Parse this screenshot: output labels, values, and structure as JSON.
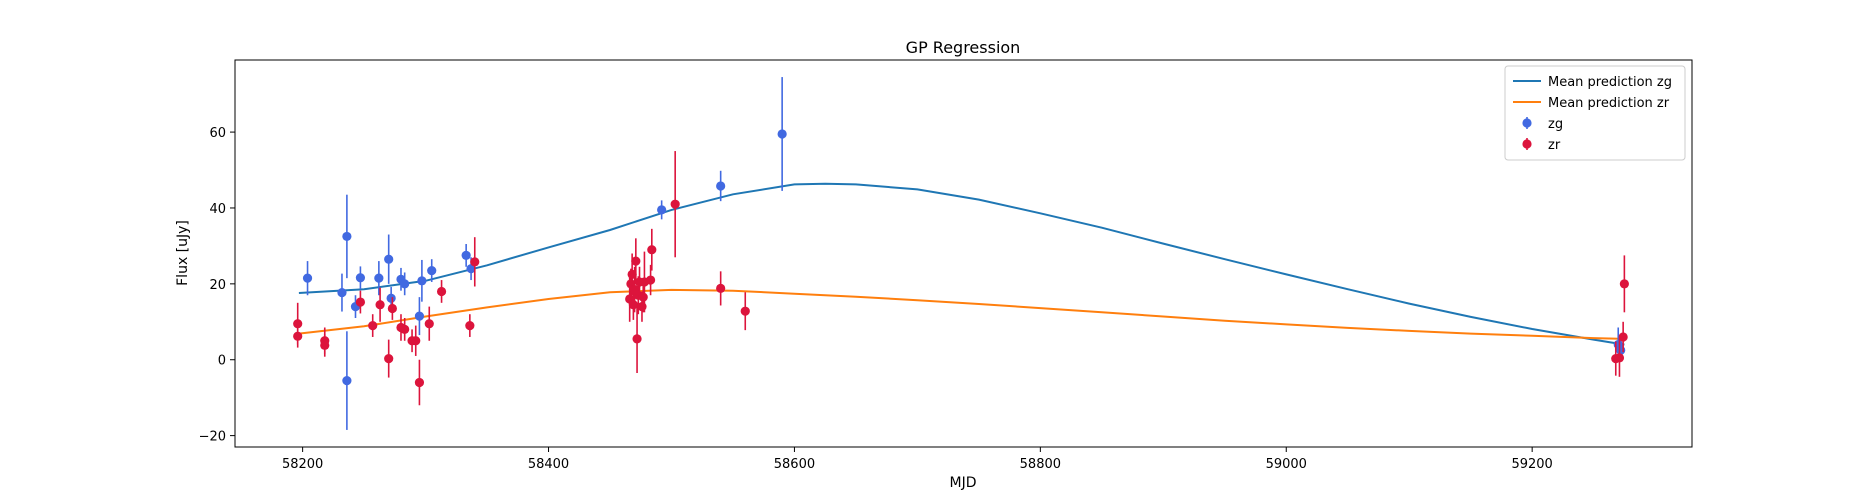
{
  "chart_data": {
    "type": "scatter",
    "title": "GP Regression",
    "xlabel": "MJD",
    "ylabel": "Flux [uJy]",
    "xlim": [
      58145,
      59330
    ],
    "ylim": [
      -23,
      79
    ],
    "xticks": [
      58200,
      58400,
      58600,
      58800,
      59000,
      59200
    ],
    "yticks": [
      -20,
      0,
      20,
      40,
      60
    ],
    "grid": false,
    "legend_position": "top-right",
    "lines": [
      {
        "name": "Mean prediction zg",
        "color": "#1f77b4",
        "x": [
          58197,
          58250,
          58300,
          58350,
          58400,
          58450,
          58500,
          58550,
          58600,
          58625,
          58650,
          58700,
          58750,
          58800,
          58850,
          58900,
          58950,
          59000,
          59050,
          59100,
          59150,
          59200,
          59250,
          59275
        ],
        "y": [
          17.6,
          18.6,
          20.8,
          24.9,
          29.6,
          34.2,
          39.5,
          43.6,
          46.2,
          46.4,
          46.2,
          44.9,
          42.2,
          38.6,
          34.8,
          30.6,
          26.5,
          22.5,
          18.6,
          14.8,
          11.3,
          8.1,
          5.3,
          4.0
        ]
      },
      {
        "name": "Mean prediction zr",
        "color": "#ff7f0e",
        "x": [
          58197,
          58250,
          58300,
          58350,
          58400,
          58450,
          58500,
          58550,
          58600,
          58650,
          58700,
          58750,
          58800,
          58850,
          58900,
          58950,
          59000,
          59050,
          59100,
          59150,
          59200,
          59250,
          59275
        ],
        "y": [
          6.9,
          8.8,
          11.4,
          13.8,
          16.0,
          17.8,
          18.4,
          18.2,
          17.4,
          16.6,
          15.7,
          14.7,
          13.6,
          12.5,
          11.4,
          10.3,
          9.3,
          8.4,
          7.6,
          6.9,
          6.3,
          5.7,
          5.5
        ]
      }
    ],
    "series": [
      {
        "name": "zg",
        "color": "#4169e1",
        "points": [
          {
            "x": 58204,
            "y": 21.5,
            "err": 4.5
          },
          {
            "x": 58232,
            "y": 17.7,
            "err": 5.0
          },
          {
            "x": 58236,
            "y": 32.5,
            "err": 11.0
          },
          {
            "x": 58236,
            "y": -5.5,
            "err": 13.0
          },
          {
            "x": 58243,
            "y": 14.0,
            "err": 3.0
          },
          {
            "x": 58247,
            "y": 21.6,
            "err": 3.0
          },
          {
            "x": 58262,
            "y": 21.5,
            "err": 4.5
          },
          {
            "x": 58270,
            "y": 26.5,
            "err": 6.5
          },
          {
            "x": 58272,
            "y": 16.2,
            "err": 3.0
          },
          {
            "x": 58280,
            "y": 21.2,
            "err": 3.0
          },
          {
            "x": 58283,
            "y": 20.0,
            "err": 3.0
          },
          {
            "x": 58295,
            "y": 11.5,
            "err": 5.0
          },
          {
            "x": 58297,
            "y": 20.8,
            "err": 5.5
          },
          {
            "x": 58305,
            "y": 23.5,
            "err": 3.0
          },
          {
            "x": 58333,
            "y": 27.5,
            "err": 3.0
          },
          {
            "x": 58337,
            "y": 24.0,
            "err": 3.0
          },
          {
            "x": 58492,
            "y": 39.5,
            "err": 2.5
          },
          {
            "x": 58540,
            "y": 45.8,
            "err": 4.0
          },
          {
            "x": 58590,
            "y": 59.5,
            "err": 15.0
          },
          {
            "x": 59270,
            "y": 4.0,
            "err": 4.5
          },
          {
            "x": 59272,
            "y": 2.5,
            "err": 3.0
          }
        ]
      },
      {
        "name": "zr",
        "color": "#dc143c",
        "points": [
          {
            "x": 58196,
            "y": 9.5,
            "err": 5.5
          },
          {
            "x": 58196,
            "y": 6.2,
            "err": 3.0
          },
          {
            "x": 58218,
            "y": 5.0,
            "err": 3.5
          },
          {
            "x": 58218,
            "y": 3.8,
            "err": 3.0
          },
          {
            "x": 58247,
            "y": 15.2,
            "err": 3.0
          },
          {
            "x": 58257,
            "y": 9.0,
            "err": 3.0
          },
          {
            "x": 58263,
            "y": 14.5,
            "err": 4.5
          },
          {
            "x": 58270,
            "y": 0.3,
            "err": 5.0
          },
          {
            "x": 58273,
            "y": 13.5,
            "err": 3.0
          },
          {
            "x": 58280,
            "y": 8.5,
            "err": 3.5
          },
          {
            "x": 58283,
            "y": 8.0,
            "err": 3.0
          },
          {
            "x": 58289,
            "y": 5.0,
            "err": 3.0
          },
          {
            "x": 58292,
            "y": 5.0,
            "err": 4.0
          },
          {
            "x": 58295,
            "y": -6.0,
            "err": 6.0
          },
          {
            "x": 58303,
            "y": 9.5,
            "err": 4.5
          },
          {
            "x": 58313,
            "y": 18.0,
            "err": 3.0
          },
          {
            "x": 58336,
            "y": 9.0,
            "err": 3.0
          },
          {
            "x": 58340,
            "y": 25.8,
            "err": 6.5
          },
          {
            "x": 58466,
            "y": 16.0,
            "err": 6.0
          },
          {
            "x": 58467,
            "y": 20.0,
            "err": 4.0
          },
          {
            "x": 58468,
            "y": 22.5,
            "err": 5.5
          },
          {
            "x": 58469,
            "y": 14.5,
            "err": 4.0
          },
          {
            "x": 58470,
            "y": 18.5,
            "err": 6.0
          },
          {
            "x": 58471,
            "y": 26.0,
            "err": 6.0
          },
          {
            "x": 58472,
            "y": 5.5,
            "err": 9.0
          },
          {
            "x": 58473,
            "y": 17.0,
            "err": 5.0
          },
          {
            "x": 58474,
            "y": 20.5,
            "err": 4.0
          },
          {
            "x": 58476,
            "y": 14.0,
            "err": 4.0
          },
          {
            "x": 58477,
            "y": 16.5,
            "err": 4.0
          },
          {
            "x": 58478,
            "y": 20.5,
            "err": 8.0
          },
          {
            "x": 58483,
            "y": 21.0,
            "err": 4.0
          },
          {
            "x": 58484,
            "y": 29.0,
            "err": 5.5
          },
          {
            "x": 58503,
            "y": 41.0,
            "err": 14.0
          },
          {
            "x": 58540,
            "y": 18.8,
            "err": 4.5
          },
          {
            "x": 58560,
            "y": 12.8,
            "err": 5.0
          },
          {
            "x": 59268,
            "y": 0.3,
            "err": 4.5
          },
          {
            "x": 59271,
            "y": 0.5,
            "err": 5.0
          },
          {
            "x": 59274,
            "y": 6.0,
            "err": 4.0
          },
          {
            "x": 59275,
            "y": 20.0,
            "err": 7.5
          }
        ]
      }
    ]
  }
}
